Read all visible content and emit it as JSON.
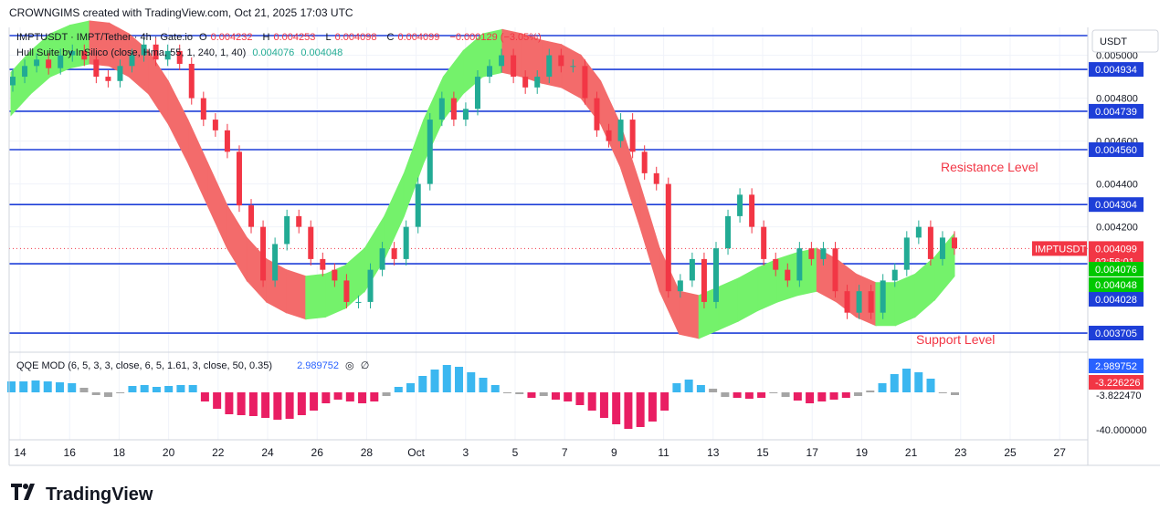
{
  "header": {
    "text": "CROWNGIMS created with TradingView.com, Oct 21, 2025 17:03 UTC"
  },
  "legend": {
    "symbol": "IMPTUSDT · IMPT/Tether · 4h · Gate.io",
    "o_label": "O",
    "o": "0.004232",
    "h_label": "H",
    "h": "0.004253",
    "l_label": "L",
    "l": "0.004098",
    "c_label": "C",
    "c": "0.004099",
    "change": "−0.000129 (−3.05%)",
    "hull": "Hull Suite by InSilico (close, Hma, 55, 1, 240, 1, 40)",
    "hull_v1": "0.004076",
    "hull_v2": "0.004048",
    "qqe": "QQE MOD (6, 5, 3, 3, close, 6, 5, 1.61, 3, close, 50, 0.35)",
    "qqe_v": "2.989752"
  },
  "annotations": {
    "resistance": "Resistance Level",
    "support": "Support Level"
  },
  "logo": {
    "text": "TradingView"
  },
  "colors": {
    "blue_line": "#1e3fd8",
    "up": "#22ab94",
    "down": "#f23645",
    "hull_green": "#74f26b",
    "hull_red": "#f36b6b",
    "qqe_blue": "#3bb7f0",
    "qqe_red": "#e91e63",
    "qqe_gray": "#a5a5a5"
  },
  "chart_data": {
    "type": "candlestick",
    "title": "IMPTUSDT · IMPT/Tether · 4h · Gate.io",
    "currency": "USDT",
    "x_ticks": [
      "14",
      "16",
      "18",
      "20",
      "22",
      "24",
      "26",
      "28",
      "Oct",
      "3",
      "5",
      "7",
      "9",
      "11",
      "13",
      "15",
      "17",
      "19",
      "21",
      "23",
      "25",
      "27"
    ],
    "y_ticks": [
      "0.005000",
      "0.004800",
      "0.004600",
      "0.004400",
      "0.004200"
    ],
    "ylim": [
      0.00362,
      0.00513
    ],
    "horizontal_levels": [
      {
        "label": "0.004934",
        "value": 0.004934
      },
      {
        "label": "0.004739",
        "value": 0.004739
      },
      {
        "label": "0.004560",
        "value": 0.00456
      },
      {
        "label": "0.004304",
        "value": 0.004304
      },
      {
        "label": "",
        "value": 0.004028
      },
      {
        "label": "0.003705",
        "value": 0.003705
      },
      {
        "label": "",
        "value": 0.00513
      }
    ],
    "price_labels": [
      {
        "label": "IMPTUSDT",
        "value": "0.004099",
        "sub": "02:56:01",
        "color": "#f23645"
      },
      {
        "value": "0.004076",
        "color": "#00c800"
      },
      {
        "value": "0.004048",
        "color": "#00c800"
      },
      {
        "value": "0.004028",
        "color": "#1e3fd8"
      }
    ],
    "last_price": 0.004099,
    "close_series": [
      0.0049,
      0.00495,
      0.00498,
      0.00494,
      0.005,
      0.00502,
      0.00498,
      0.0049,
      0.00488,
      0.00495,
      0.005,
      0.00505,
      0.00498,
      0.00502,
      0.00496,
      0.0048,
      0.0047,
      0.00465,
      0.00455,
      0.0043,
      0.0042,
      0.00395,
      0.00412,
      0.00425,
      0.0042,
      0.00405,
      0.004,
      0.00395,
      0.00385,
      0.00385,
      0.004,
      0.0041,
      0.00405,
      0.0042,
      0.0044,
      0.0047,
      0.0048,
      0.0047,
      0.00475,
      0.0049,
      0.00495,
      0.005,
      0.0049,
      0.00485,
      0.0049,
      0.005,
      0.00495,
      0.00495,
      0.0048,
      0.00465,
      0.0046,
      0.0047,
      0.00455,
      0.00445,
      0.0044,
      0.0039,
      0.00395,
      0.00405,
      0.00385,
      0.0041,
      0.00425,
      0.00435,
      0.0042,
      0.00405,
      0.004,
      0.00395,
      0.0041,
      0.00405,
      0.0041,
      0.0039,
      0.0038,
      0.0039,
      0.0038,
      0.00395,
      0.004,
      0.00415,
      0.0042,
      0.00405,
      0.00415,
      0.0041
    ],
    "hull_series": [
      {
        "name": "",
        "value": "0.004076",
        "values": [
          0.00482,
          0.00492,
          0.005,
          0.00504,
          0.00506,
          0.00505,
          0.005,
          0.00492,
          0.00478,
          0.0046,
          0.0044,
          0.0042,
          0.00405,
          0.00395,
          0.0039,
          0.00387,
          0.00388,
          0.00392,
          0.004,
          0.00415,
          0.00435,
          0.0046,
          0.0048,
          0.00492,
          0.005,
          0.00502,
          0.005,
          0.00497,
          0.00495,
          0.0049,
          0.00478,
          0.00458,
          0.0043,
          0.004,
          0.0038,
          0.00378,
          0.00382,
          0.00386,
          0.00391,
          0.00395,
          0.00398,
          0.004,
          0.00395,
          0.00388,
          0.00384,
          0.00384,
          0.00388,
          0.00396,
          0.00407
        ]
      }
    ],
    "qqe": {
      "y_ticks": [
        "-3.822470",
        "-40.000000"
      ],
      "labels": [
        "2.989752",
        "-3.226226"
      ],
      "histogram": [
        12,
        12,
        13,
        12,
        11,
        10,
        5,
        -3,
        -5,
        0,
        7,
        8,
        6,
        7,
        8,
        8,
        -10,
        -18,
        -24,
        -25,
        -26,
        -28,
        -30,
        -29,
        -25,
        -20,
        -12,
        -8,
        -10,
        -12,
        -10,
        -4,
        6,
        10,
        18,
        25,
        30,
        28,
        22,
        16,
        8,
        0,
        -2,
        -6,
        -4,
        -8,
        -10,
        -14,
        -20,
        -28,
        -35,
        -40,
        -38,
        -32,
        -20,
        10,
        14,
        8,
        4,
        -5,
        -6,
        -7,
        -6,
        0,
        -5,
        -9,
        -12,
        -10,
        -8,
        -6,
        -4,
        2,
        10,
        20,
        26,
        22,
        15,
        0,
        -3
      ]
    }
  }
}
